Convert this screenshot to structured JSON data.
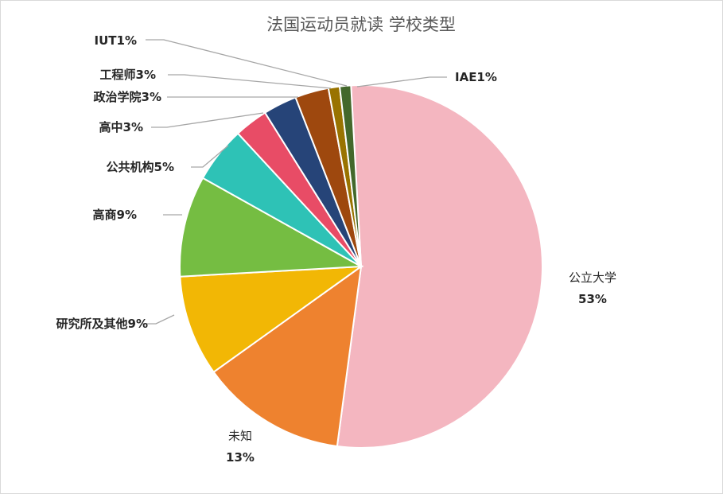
{
  "chart_data": {
    "type": "pie",
    "title": "法国运动员就读 学校类型",
    "slices": [
      {
        "name": "公立大学",
        "percent": 53,
        "color": "#f4b6c0"
      },
      {
        "name": "未知",
        "percent": 13,
        "color": "#ee822f"
      },
      {
        "name": "研究所及其他",
        "percent": 9,
        "color": "#f2b705"
      },
      {
        "name": "高商",
        "percent": 9,
        "color": "#75bd42"
      },
      {
        "name": "公共机构",
        "percent": 5,
        "color": "#2ec2b6"
      },
      {
        "name": "高中",
        "percent": 3,
        "color": "#e84c66"
      },
      {
        "name": "政治学院",
        "percent": 3,
        "color": "#264478"
      },
      {
        "name": "工程师",
        "percent": 3,
        "color": "#9e480e"
      },
      {
        "name": "IUT",
        "percent": 1,
        "color": "#997300"
      },
      {
        "name": "IAE",
        "percent": 1,
        "color": "#43682b"
      }
    ],
    "label_texts": [
      {
        "line1": "公立大学",
        "line2": "53%"
      },
      {
        "line1": "未知",
        "line2": "13%"
      },
      {
        "line1": "研究所及其他9%"
      },
      {
        "line1": "高商9%"
      },
      {
        "line1": "公共机构5%"
      },
      {
        "line1": "高中3%"
      },
      {
        "line1": "政治学院3%"
      },
      {
        "line1": "工程师3%"
      },
      {
        "line1": "IUT1%"
      },
      {
        "line1": "IAE1%"
      }
    ],
    "legend": "none"
  }
}
